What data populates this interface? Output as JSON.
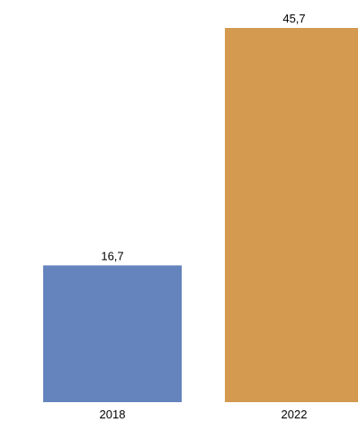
{
  "chart_data": {
    "type": "bar",
    "categories": [
      "2018",
      "2022"
    ],
    "values": [
      16.7,
      45.7
    ],
    "value_labels": [
      "16,7",
      "45,7"
    ],
    "colors": [
      "#6583bd",
      "#d39a50"
    ],
    "title": "",
    "xlabel": "",
    "ylabel": "",
    "ylim": [
      0,
      45.7
    ],
    "grid": false,
    "legend": "none"
  }
}
